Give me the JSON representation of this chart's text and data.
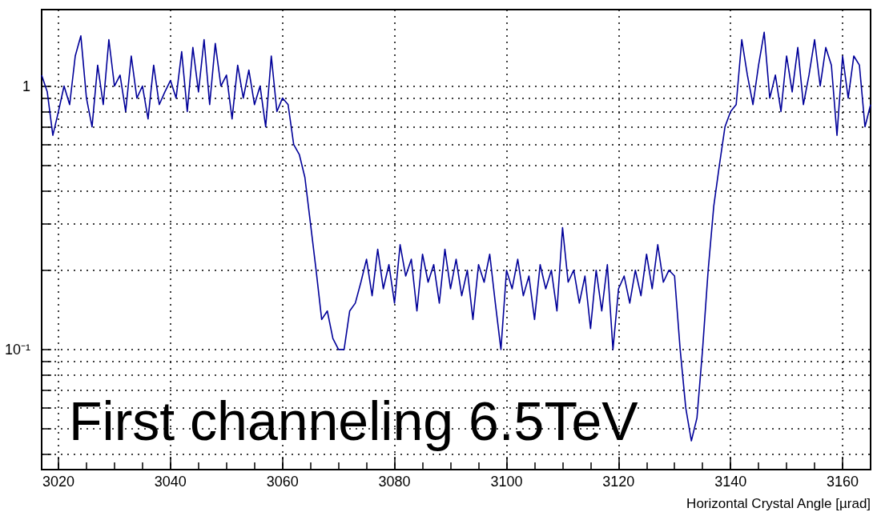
{
  "chart_data": {
    "type": "line",
    "xlabel": "Horizontal Crystal Angle [µrad]",
    "annotations": [
      "First channeling 6.5TeV"
    ],
    "x": [
      3017,
      3018,
      3019,
      3020,
      3021,
      3022,
      3023,
      3024,
      3025,
      3026,
      3027,
      3028,
      3029,
      3030,
      3031,
      3032,
      3033,
      3034,
      3035,
      3036,
      3037,
      3038,
      3039,
      3040,
      3041,
      3042,
      3043,
      3044,
      3045,
      3046,
      3047,
      3048,
      3049,
      3050,
      3051,
      3052,
      3053,
      3054,
      3055,
      3056,
      3057,
      3058,
      3059,
      3060,
      3061,
      3062,
      3063,
      3064,
      3065,
      3066,
      3067,
      3068,
      3069,
      3070,
      3071,
      3072,
      3073,
      3074,
      3075,
      3076,
      3077,
      3078,
      3079,
      3080,
      3081,
      3082,
      3083,
      3084,
      3085,
      3086,
      3087,
      3088,
      3089,
      3090,
      3091,
      3092,
      3093,
      3094,
      3095,
      3096,
      3097,
      3098,
      3099,
      3100,
      3101,
      3102,
      3103,
      3104,
      3105,
      3106,
      3107,
      3108,
      3109,
      3110,
      3111,
      3112,
      3113,
      3114,
      3115,
      3116,
      3117,
      3118,
      3119,
      3120,
      3121,
      3122,
      3123,
      3124,
      3125,
      3126,
      3127,
      3128,
      3129,
      3130,
      3131,
      3132,
      3133,
      3134,
      3135,
      3136,
      3137,
      3138,
      3139,
      3140,
      3141,
      3142,
      3143,
      3144,
      3145,
      3146,
      3147,
      3148,
      3149,
      3150,
      3151,
      3152,
      3153,
      3154,
      3155,
      3156,
      3157,
      3158,
      3159,
      3160,
      3161,
      3162,
      3163,
      3164,
      3165
    ],
    "series": [
      {
        "color": "#000099",
        "values": [
          1.1,
          0.95,
          0.65,
          0.8,
          1.0,
          0.85,
          1.3,
          1.55,
          0.9,
          0.7,
          1.2,
          0.85,
          1.5,
          1.0,
          1.1,
          0.8,
          1.3,
          0.9,
          1.0,
          0.75,
          1.2,
          0.85,
          0.95,
          1.05,
          0.9,
          1.35,
          0.8,
          1.4,
          0.95,
          1.5,
          0.85,
          1.45,
          1.0,
          1.1,
          0.75,
          1.2,
          0.9,
          1.15,
          0.85,
          1.0,
          0.7,
          1.3,
          0.8,
          0.9,
          0.85,
          0.6,
          0.55,
          0.45,
          0.3,
          0.2,
          0.13,
          0.14,
          0.11,
          0.1,
          0.1,
          0.14,
          0.15,
          0.18,
          0.22,
          0.16,
          0.24,
          0.17,
          0.21,
          0.15,
          0.25,
          0.19,
          0.22,
          0.14,
          0.23,
          0.18,
          0.21,
          0.15,
          0.24,
          0.17,
          0.22,
          0.16,
          0.2,
          0.13,
          0.21,
          0.18,
          0.23,
          0.15,
          0.1,
          0.2,
          0.17,
          0.22,
          0.16,
          0.19,
          0.13,
          0.21,
          0.17,
          0.2,
          0.14,
          0.29,
          0.18,
          0.2,
          0.15,
          0.19,
          0.12,
          0.2,
          0.14,
          0.21,
          0.1,
          0.17,
          0.19,
          0.15,
          0.2,
          0.16,
          0.23,
          0.17,
          0.25,
          0.18,
          0.2,
          0.19,
          0.1,
          0.06,
          0.045,
          0.055,
          0.1,
          0.2,
          0.35,
          0.5,
          0.7,
          0.8,
          0.85,
          1.5,
          1.1,
          0.85,
          1.2,
          1.6,
          0.9,
          1.1,
          0.8,
          1.3,
          0.95,
          1.4,
          0.85,
          1.1,
          1.5,
          1.0,
          1.4,
          1.2,
          0.65,
          1.3,
          0.9,
          1.3,
          1.2,
          0.7,
          0.85
        ]
      }
    ],
    "xlim": [
      3017,
      3165
    ],
    "xticks": [
      3020,
      {
        "value": 3025,
        "label": null
      },
      {
        "value": 3030,
        "label": null
      },
      {
        "value": 3035,
        "label": null
      },
      3040,
      {
        "value": 3045,
        "label": null
      },
      {
        "value": 3050,
        "label": null
      },
      {
        "value": 3055,
        "label": null
      },
      3060,
      {
        "value": 3065,
        "label": null
      },
      {
        "value": 3070,
        "label": null
      },
      {
        "value": 3075,
        "label": null
      },
      3080,
      {
        "value": 3085,
        "label": null
      },
      {
        "value": 3090,
        "label": null
      },
      {
        "value": 3095,
        "label": null
      },
      3100,
      {
        "value": 3105,
        "label": null
      },
      {
        "value": 3110,
        "label": null
      },
      {
        "value": 3115,
        "label": null
      },
      3120,
      {
        "value": 3125,
        "label": null
      },
      {
        "value": 3130,
        "label": null
      },
      {
        "value": 3135,
        "label": null
      },
      3140,
      {
        "value": 3145,
        "label": null
      },
      {
        "value": 3150,
        "label": null
      },
      {
        "value": 3155,
        "label": null
      },
      3160
    ],
    "ylim": [
      0.035,
      1.95
    ],
    "yticks": [
      {
        "value": 0.04,
        "label": null
      },
      {
        "value": 0.05,
        "label": null
      },
      {
        "value": 0.06,
        "label": null
      },
      {
        "value": 0.07,
        "label": null
      },
      {
        "value": 0.08,
        "label": null
      },
      {
        "value": 0.09,
        "label": null
      },
      {
        "value": 0.1,
        "label": "10⁻¹"
      },
      {
        "value": 0.2,
        "label": null
      },
      {
        "value": 0.3,
        "label": null
      },
      {
        "value": 0.4,
        "label": null
      },
      {
        "value": 0.5,
        "label": null
      },
      {
        "value": 0.6,
        "label": null
      },
      {
        "value": 0.7,
        "label": null
      },
      {
        "value": 0.8,
        "label": null
      },
      {
        "value": 0.9,
        "label": null
      },
      1
    ],
    "log": "y",
    "grid": true,
    "marker": "none",
    "line_style": "solid"
  }
}
